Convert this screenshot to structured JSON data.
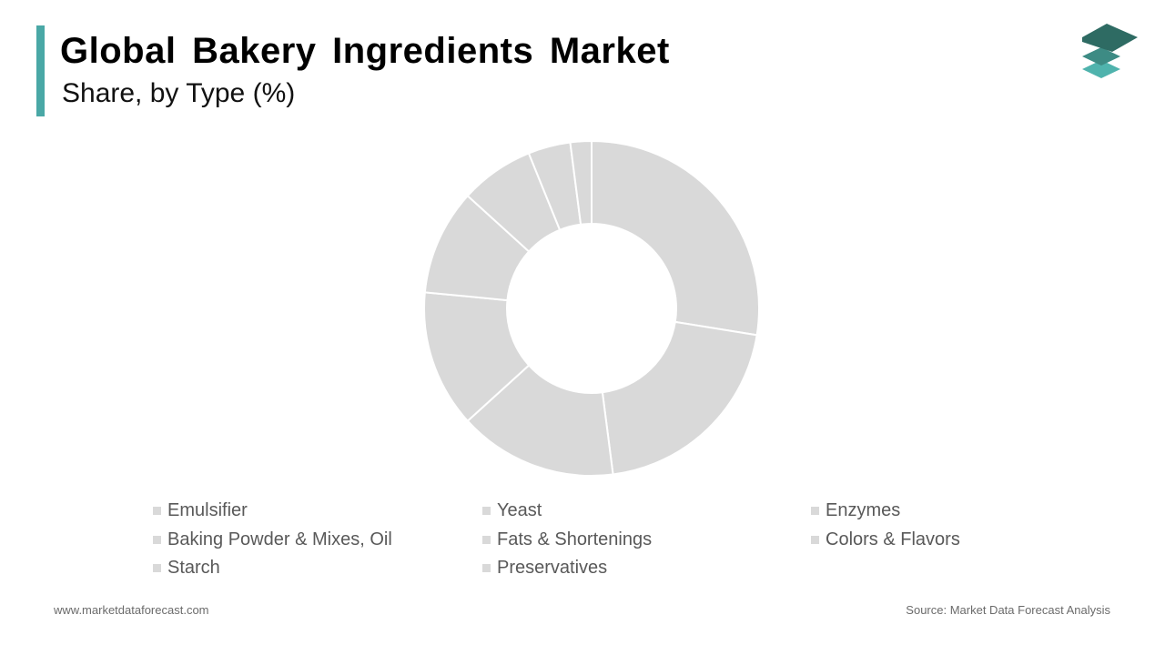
{
  "header": {
    "title": "Global Bakery Ingredients Market",
    "subtitle": "Share, by Type (%)",
    "accent_color": "#4aa8a6"
  },
  "logo": {
    "icon": "stacked-layers-logo-icon",
    "colors": [
      "#2e6b63",
      "#3d8b84",
      "#4fb3ad"
    ]
  },
  "chart_data": {
    "type": "pie",
    "style": "donut",
    "title": "Global Bakery Ingredients Market",
    "subtitle": "Share, by Type (%)",
    "categories": [
      "Emulsifier",
      "Yeast",
      "Enzymes",
      "Baking Powder & Mixes, Oil",
      "Fats & Shortenings",
      "Colors & Flavors",
      "Starch",
      "Preservatives"
    ],
    "values": [
      27,
      20,
      15,
      13,
      10,
      7,
      4,
      2
    ],
    "slice_color": "#d9d9d9",
    "separator_color": "#ffffff",
    "legend_position": "bottom"
  },
  "legend": {
    "items": [
      {
        "label": "Emulsifier"
      },
      {
        "label": "Yeast"
      },
      {
        "label": "Enzymes"
      },
      {
        "label": "Baking Powder & Mixes, Oil"
      },
      {
        "label": "Fats & Shortenings"
      },
      {
        "label": "Colors & Flavors"
      },
      {
        "label": "Starch"
      },
      {
        "label": "Preservatives"
      }
    ],
    "swatch_color": "#d9d9d9"
  },
  "footer": {
    "website": "www.marketdataforecast.com",
    "source": "Source: Market Data Forecast Analysis"
  }
}
